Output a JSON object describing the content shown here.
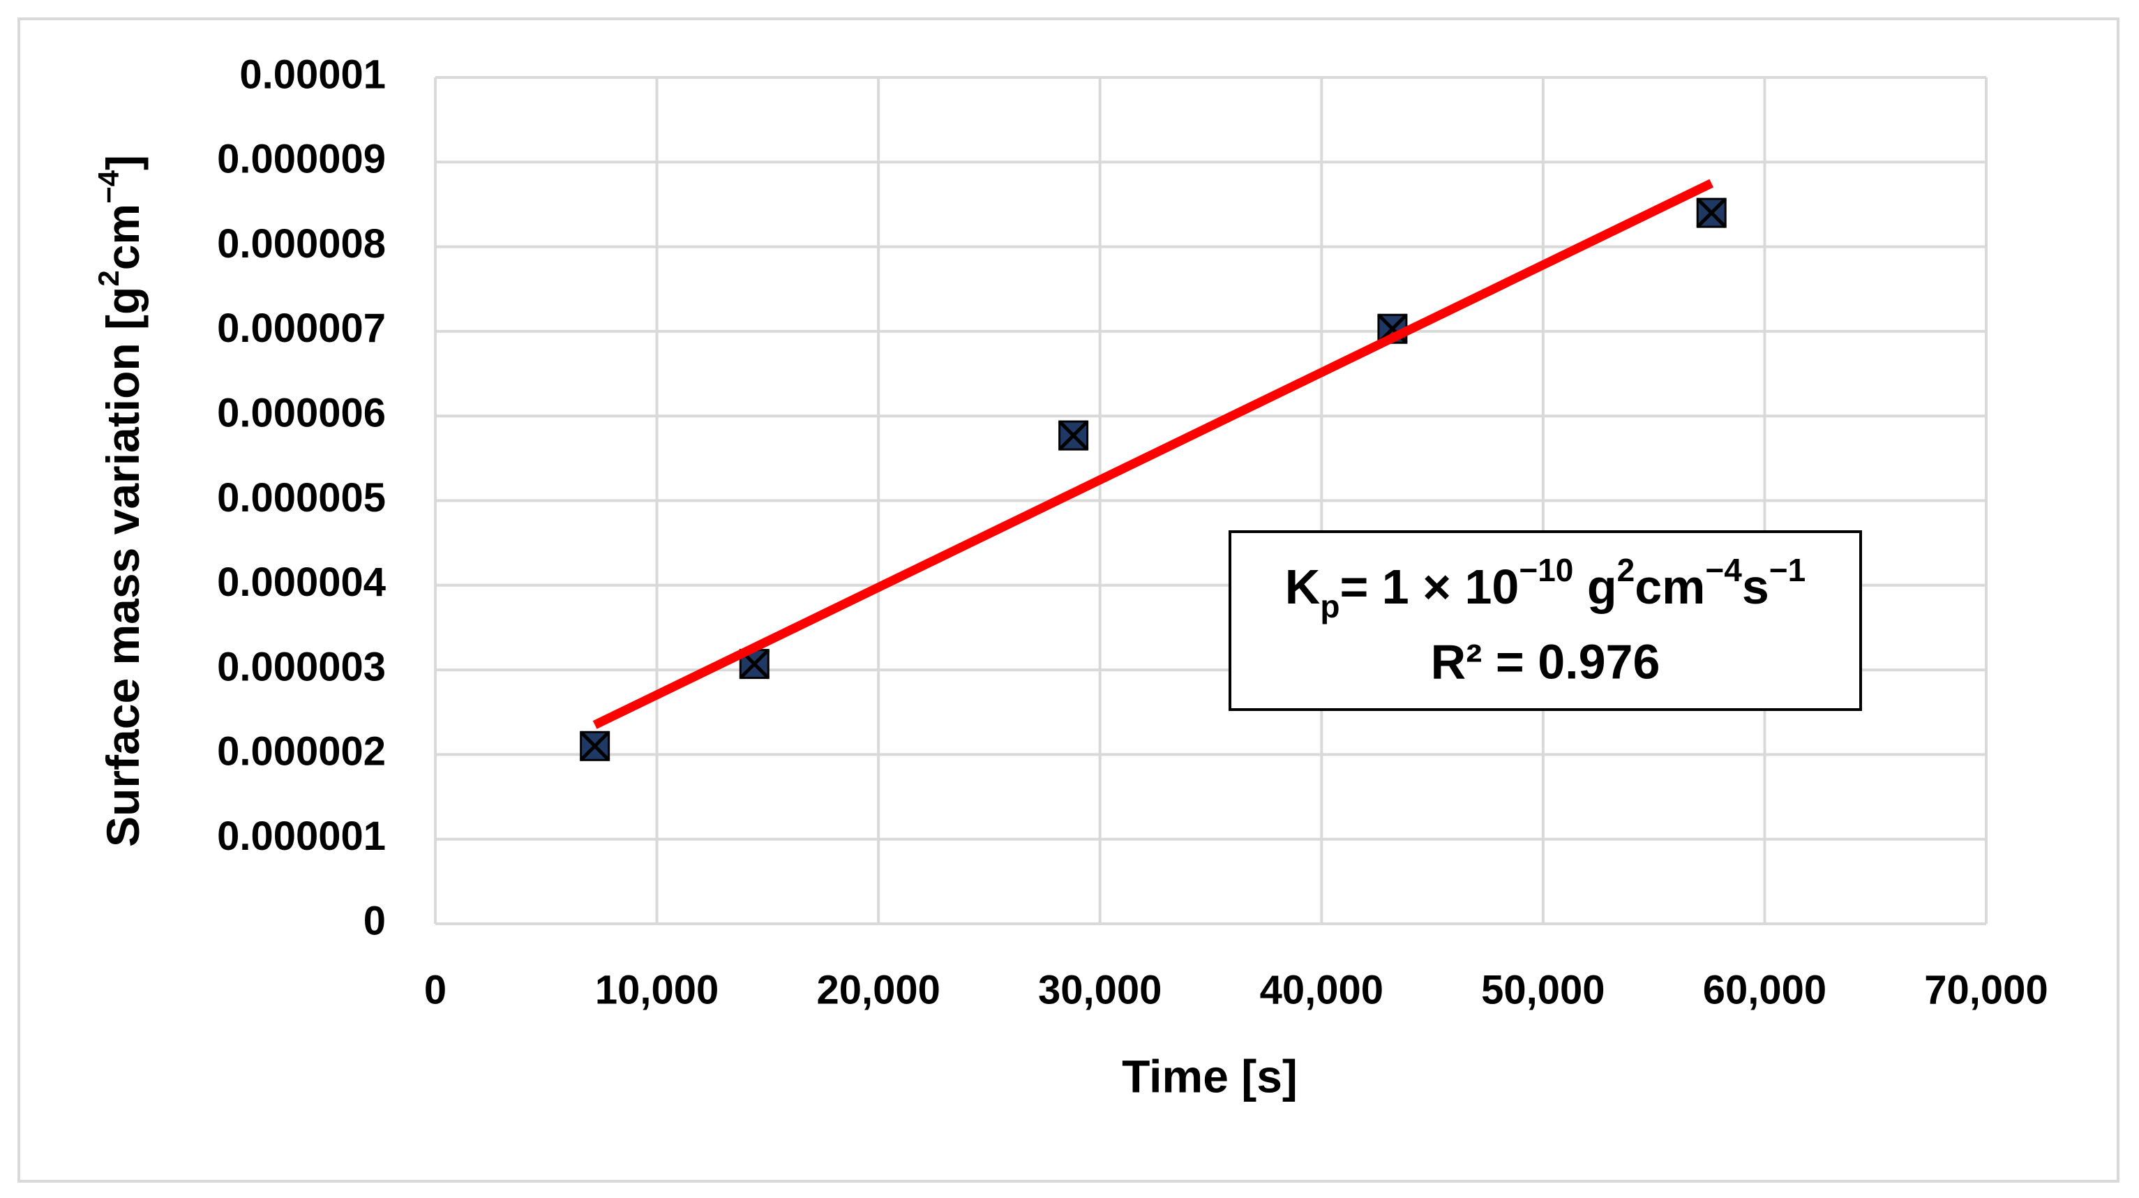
{
  "chart_data": {
    "type": "scatter",
    "x_label": "Time [s]",
    "y_label": [
      "Surface mass variation [g",
      "2",
      "cm",
      "−4",
      "]"
    ],
    "x": [
      7200,
      14400,
      28800,
      43200,
      57600
    ],
    "values": [
      2.1e-06,
      3.07e-06,
      5.77e-06,
      7.03e-06,
      8.4e-06
    ],
    "color": "#1f3864",
    "trendline": {
      "x": [
        7200,
        57600
      ],
      "values": [
        2.35e-06,
        8.75e-06
      ],
      "color": "#ff0000"
    },
    "annotation": {
      "line1": [
        "K",
        "p",
        "= 1 × 10",
        "−10",
        " g",
        "2",
        "cm",
        "−4",
        "s",
        "−1"
      ],
      "line2": "R² = 0.976"
    },
    "xlim": [
      0,
      70000
    ],
    "xticks": [
      0,
      {
        "value": 10000,
        "label": "10,000"
      },
      {
        "value": 20000,
        "label": "20,000"
      },
      {
        "value": 30000,
        "label": "30,000"
      },
      {
        "value": 40000,
        "label": "40,000"
      },
      {
        "value": 50000,
        "label": "50,000"
      },
      {
        "value": 60000,
        "label": "60,000"
      },
      {
        "value": 70000,
        "label": "70,000"
      }
    ],
    "ylim": [
      0,
      1e-05
    ],
    "yticks": [
      0,
      1e-06,
      2e-06,
      3e-06,
      4e-06,
      5e-06,
      6e-06,
      7e-06,
      8e-06,
      9e-06,
      1e-05
    ],
    "grid": true
  }
}
